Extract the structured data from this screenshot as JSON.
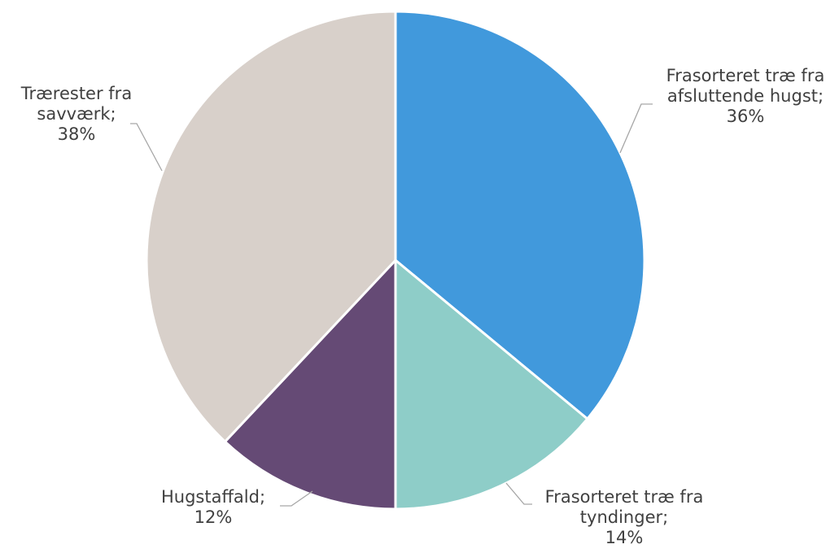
{
  "chart_data": {
    "type": "pie",
    "title": "",
    "start_angle_deg": 0,
    "direction": "clockwise",
    "slices": [
      {
        "name": "Frasorteret træ fra afsluttende hugst",
        "value": 36,
        "label_lines": [
          "Frasorteret træ fra",
          "afsluttende hugst;",
          "36%"
        ],
        "color": "#4199dc"
      },
      {
        "name": "Frasorteret træ fra tyndinger",
        "value": 14,
        "label_lines": [
          "Frasorteret træ fra",
          "tyndinger;",
          "14%"
        ],
        "color": "#8ecdc8"
      },
      {
        "name": "Hugstaffald",
        "value": 12,
        "label_lines": [
          "Hugstaffald;",
          "12%"
        ],
        "color": "#654a75"
      },
      {
        "name": "Trærester fra savværk",
        "value": 38,
        "label_lines": [
          "Trærester fra",
          "savværk;",
          "38%"
        ],
        "color": "#d8d0ca"
      }
    ],
    "legend": "none",
    "data_labels": "outside-with-leader-lines"
  }
}
